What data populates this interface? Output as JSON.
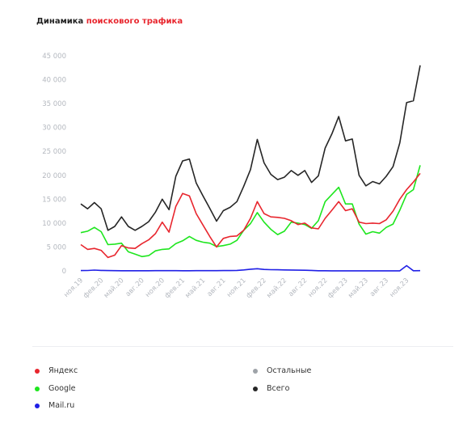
{
  "title": {
    "part1": "Динамика",
    "part2": "поискового трафика"
  },
  "colors": {
    "accent": "#e8262e"
  },
  "chart_data": {
    "type": "line",
    "ylim": [
      0,
      45000
    ],
    "yticks": [
      0,
      5000,
      10000,
      15000,
      20000,
      25000,
      30000,
      35000,
      40000,
      45000
    ],
    "ytick_labels": [
      "0",
      "5 000",
      "10 000",
      "15 000",
      "20 000",
      "25 000",
      "30 000",
      "35 000",
      "40 000",
      "45 000"
    ],
    "xtick_labels": [
      "ноя.19",
      "фев.20",
      "май.20",
      "авг.20",
      "ноя.20",
      "фев.21",
      "май.21",
      "авг.21",
      "ноя.21",
      "фев.22",
      "май.22",
      "авг.22",
      "ноя.22",
      "фев.23",
      "май.23",
      "авг.23",
      "ноя.23"
    ],
    "series": [
      {
        "name": "Яндекс",
        "color": "#e8262e",
        "values": [
          5500,
          4500,
          4700,
          4300,
          2800,
          3300,
          5300,
          4800,
          4700,
          5700,
          6500,
          7800,
          10200,
          8100,
          13500,
          16200,
          15700,
          12000,
          9600,
          7200,
          5000,
          6800,
          7200,
          7300,
          8500,
          11000,
          14500,
          12000,
          11300,
          11200,
          11000,
          10500,
          9700,
          10000,
          9000,
          8800,
          11000,
          12700,
          14500,
          12600,
          13000,
          10200,
          9900,
          10000,
          9900,
          10700,
          12500,
          15000,
          17000,
          18600,
          20400
        ]
      },
      {
        "name": "Google",
        "color": "#1ee61e",
        "values": [
          8000,
          8300,
          9100,
          8200,
          5500,
          5600,
          5800,
          4000,
          3500,
          3000,
          3200,
          4200,
          4500,
          4600,
          5700,
          6300,
          7200,
          6400,
          6000,
          5800,
          5100,
          5300,
          5600,
          6400,
          8500,
          9900,
          12200,
          10200,
          8700,
          7600,
          8300,
          10200,
          10000,
          9700,
          8900,
          10500,
          14500,
          16000,
          17500,
          14000,
          14000,
          9800,
          7700,
          8200,
          7900,
          9100,
          9800,
          12700,
          16000,
          17000,
          22100
        ]
      },
      {
        "name": "Mail.ru",
        "color": "#1f1fe6",
        "values": [
          60,
          90,
          170,
          100,
          70,
          50,
          40,
          30,
          30,
          30,
          40,
          50,
          50,
          50,
          50,
          40,
          40,
          50,
          50,
          50,
          50,
          60,
          70,
          100,
          200,
          350,
          450,
          300,
          250,
          230,
          200,
          180,
          150,
          130,
          100,
          30,
          30,
          20,
          20,
          20,
          20,
          10,
          10,
          10,
          10,
          20,
          20,
          20,
          1100,
          30,
          50
        ]
      },
      {
        "name": "Остальные",
        "color": "#9ea3a8",
        "values": []
      },
      {
        "name": "Всего",
        "color": "#262626",
        "values": [
          14000,
          13000,
          14300,
          13000,
          8500,
          9300,
          11300,
          9300,
          8500,
          9300,
          10300,
          12300,
          15000,
          12800,
          19800,
          23000,
          23400,
          18400,
          15700,
          13100,
          10400,
          12600,
          13300,
          14500,
          17700,
          21200,
          27500,
          22600,
          20200,
          19100,
          19600,
          21000,
          20000,
          21000,
          18500,
          19900,
          25700,
          28700,
          32300,
          27200,
          27600,
          20000,
          17800,
          18700,
          18200,
          19800,
          21800,
          26800,
          35200,
          35600,
          43000
        ]
      }
    ]
  },
  "legend": {
    "yandex": "Яндекс",
    "google": "Google",
    "mailru": "Mail.ru",
    "other": "Остальные",
    "total": "Всего"
  }
}
